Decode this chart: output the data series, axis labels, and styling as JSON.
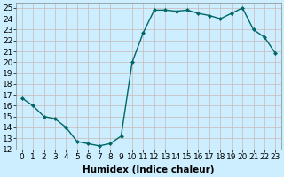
{
  "x": [
    0,
    1,
    2,
    3,
    4,
    5,
    6,
    7,
    8,
    9,
    10,
    11,
    12,
    13,
    14,
    15,
    16,
    17,
    18,
    19,
    20,
    21,
    22,
    23
  ],
  "y": [
    16.7,
    16.0,
    15.0,
    14.8,
    14.0,
    12.7,
    12.5,
    12.3,
    12.5,
    13.2,
    20.0,
    22.7,
    24.8,
    24.8,
    24.7,
    24.8,
    24.5,
    24.3,
    24.0,
    24.5,
    25.0,
    23.0,
    22.3,
    20.8
  ],
  "line_color": "#006666",
  "marker": "D",
  "marker_size": 2,
  "xlabel": "Humidex (Indice chaleur)",
  "xlabel_fontsize": 7.5,
  "xlabel_fontweight": "bold",
  "ylim": [
    12,
    25.5
  ],
  "xlim": [
    -0.5,
    23.5
  ],
  "yticks": [
    12,
    13,
    14,
    15,
    16,
    17,
    18,
    19,
    20,
    21,
    22,
    23,
    24,
    25
  ],
  "xticks": [
    0,
    1,
    2,
    3,
    4,
    5,
    6,
    7,
    8,
    9,
    10,
    11,
    12,
    13,
    14,
    15,
    16,
    17,
    18,
    19,
    20,
    21,
    22,
    23
  ],
  "background_color": "#cceeff",
  "grid_color": "#c8b8b8",
  "tick_fontsize": 6.5,
  "linewidth": 1.0
}
